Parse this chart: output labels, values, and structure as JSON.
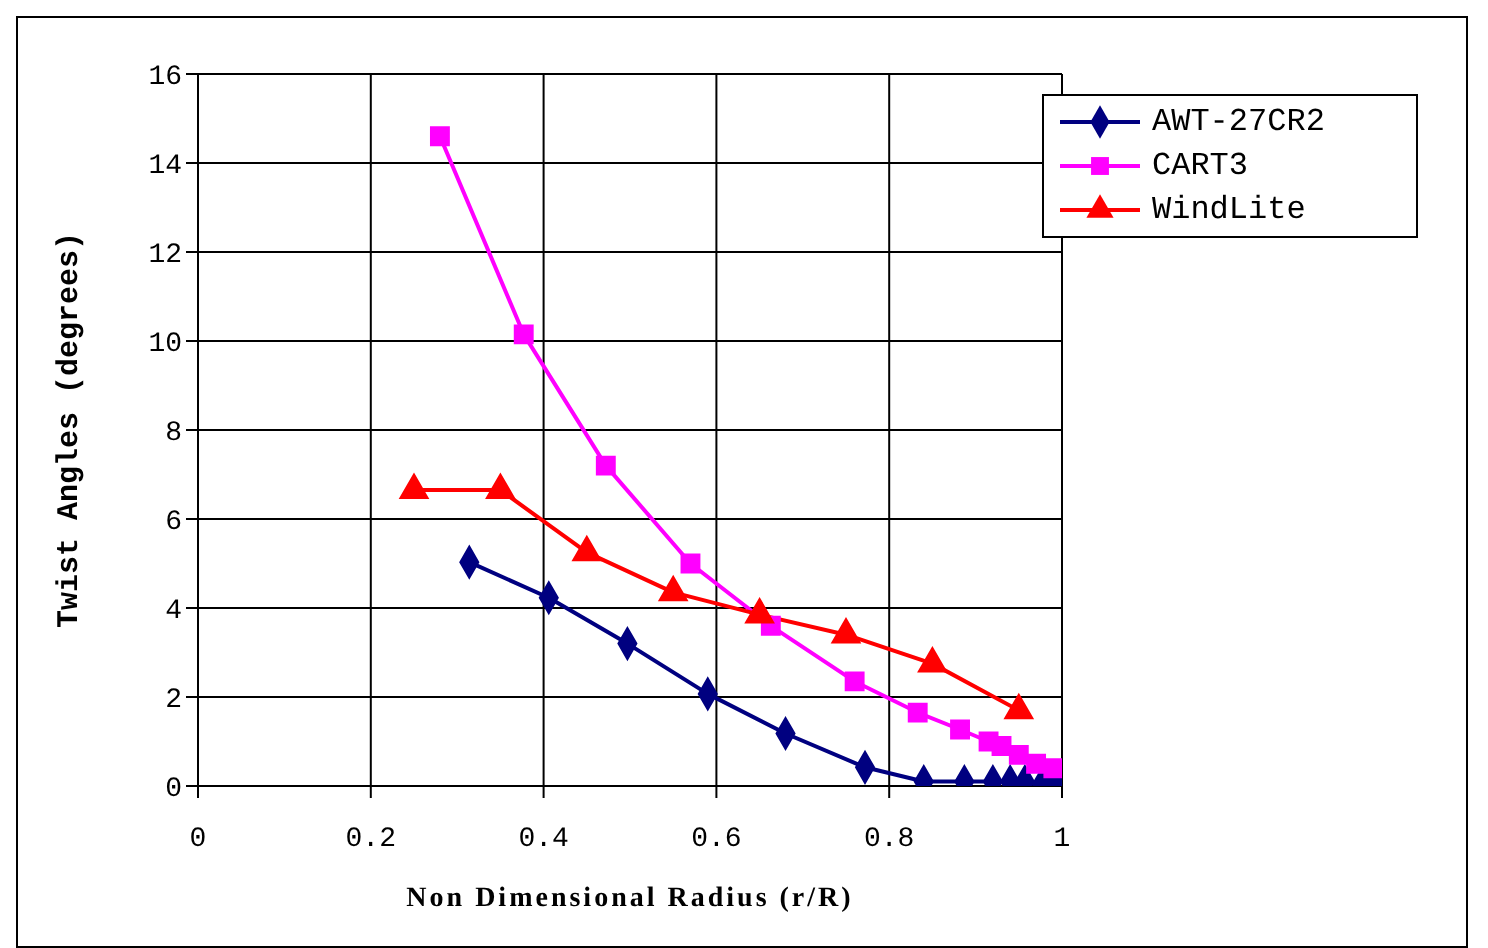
{
  "chart_data": {
    "type": "line",
    "xlabel": "Non Dimensional Radius (r/R)",
    "ylabel": "Twist Angles (degrees)",
    "xlim": [
      0,
      1
    ],
    "xticks": [
      0,
      0.2,
      0.4,
      0.6,
      0.8,
      1
    ],
    "ylim": [
      0,
      16
    ],
    "yticks": [
      0,
      2,
      4,
      6,
      8,
      10,
      12,
      14,
      16
    ],
    "grid": true,
    "legend": "top right",
    "series": [
      {
        "name": "AWT-27CR2",
        "color": "#000080",
        "marker": "diamond",
        "x": [
          0.314,
          0.406,
          0.497,
          0.59,
          0.68,
          0.772,
          0.84,
          0.887,
          0.92,
          0.94,
          0.957,
          0.977,
          0.99,
          0.998
        ],
        "values": [
          5.03,
          4.23,
          3.2,
          2.07,
          1.18,
          0.42,
          0.1,
          0.1,
          0.1,
          0.1,
          0.1,
          0.05,
          0.05,
          0.05
        ]
      },
      {
        "name": "CART3",
        "color": "#ff00ff",
        "marker": "square",
        "x": [
          0.28,
          0.377,
          0.472,
          0.57,
          0.663,
          0.76,
          0.833,
          0.882,
          0.915,
          0.93,
          0.95,
          0.97,
          0.99
        ],
        "values": [
          14.6,
          10.15,
          7.2,
          5.0,
          3.6,
          2.35,
          1.65,
          1.27,
          1.0,
          0.9,
          0.7,
          0.5,
          0.4
        ]
      },
      {
        "name": "WindLite",
        "color": "#ff0000",
        "marker": "triangle",
        "x": [
          0.25,
          0.35,
          0.45,
          0.55,
          0.65,
          0.75,
          0.85,
          0.95
        ],
        "values": [
          6.65,
          6.65,
          5.25,
          4.35,
          3.85,
          3.4,
          2.75,
          1.7
        ]
      }
    ]
  }
}
